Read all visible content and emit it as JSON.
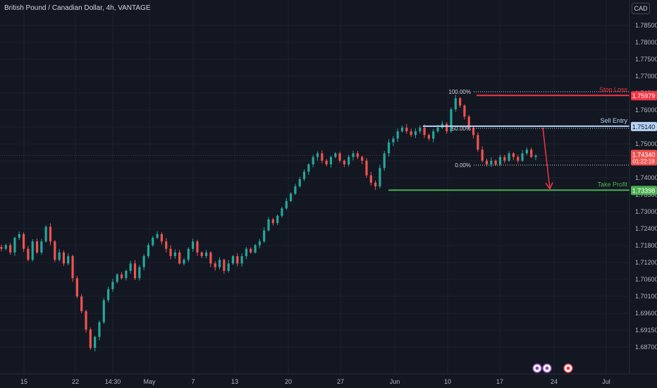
{
  "title": "British Pound / Canadian Dollar, 4h, VANTAGE",
  "currency": "CAD",
  "chart_data": {
    "type": "candlestick",
    "y_ticks": [
      "1.78500",
      "1.78000",
      "1.77500",
      "1.77000",
      "1.76500",
      "1.76000",
      "1.75500",
      "1.75000",
      "1.74500",
      "1.74000",
      "1.73500",
      "1.73000",
      "1.72400",
      "1.71800",
      "1.71200",
      "1.70600",
      "1.70100",
      "1.69600",
      "1.69150",
      "1.68700"
    ],
    "ylim": [
      1.687,
      1.785
    ],
    "x_ticks": [
      "15",
      "22",
      "14:30",
      "May",
      "7",
      "13",
      "20",
      "27",
      "Jun",
      "10",
      "17",
      "24",
      "Jul"
    ],
    "close_path": [
      1.718,
      1.719,
      1.717,
      1.721,
      1.722,
      1.718,
      1.715,
      1.72,
      1.717,
      1.72,
      1.724,
      1.72,
      1.715,
      1.717,
      1.714,
      1.716,
      1.71,
      1.705,
      1.701,
      1.696,
      1.691,
      1.694,
      1.698,
      1.704,
      1.707,
      1.709,
      1.711,
      1.71,
      1.712,
      1.714,
      1.71,
      1.713,
      1.716,
      1.719,
      1.721,
      1.722,
      1.72,
      1.718,
      1.716,
      1.717,
      1.714,
      1.715,
      1.718,
      1.72,
      1.717,
      1.716,
      1.717,
      1.714,
      1.713,
      1.715,
      1.712,
      1.714,
      1.716,
      1.714,
      1.716,
      1.718,
      1.717,
      1.719,
      1.72,
      1.723,
      1.726,
      1.725,
      1.727,
      1.729,
      1.731,
      1.733,
      1.735,
      1.737,
      1.739,
      1.741,
      1.743,
      1.744,
      1.742,
      1.741,
      1.743,
      1.744,
      1.742,
      1.741,
      1.743,
      1.744,
      1.743,
      1.742,
      1.738,
      1.736,
      1.735,
      1.74,
      1.744,
      1.747,
      1.748,
      1.75,
      1.751,
      1.75,
      1.749,
      1.75,
      1.751,
      1.749,
      1.748,
      1.75,
      1.751,
      1.752,
      1.75,
      1.756,
      1.759,
      1.757,
      1.754,
      1.751,
      1.749,
      1.745,
      1.742,
      1.741,
      1.742,
      1.741,
      1.743,
      1.742,
      1.744,
      1.743,
      1.742,
      1.744,
      1.745,
      1.743,
      1.7434
    ],
    "current_price": {
      "label": "1.74340",
      "countdown": "01:22:19",
      "value": 1.7434
    },
    "fib": {
      "levels": [
        {
          "label": "100.00%",
          "value": 1.7608
        },
        {
          "label": "50.00%",
          "value": 1.7508
        },
        {
          "label": "0.00%",
          "value": 1.7408
        }
      ]
    },
    "annotations": {
      "stop_loss": {
        "text": "Stop Loss",
        "price": "1.75979",
        "value": 1.75979,
        "color": "#f23645"
      },
      "sell_entry": {
        "text": "Sell Entry",
        "price": "1.75140",
        "value": 1.7514,
        "color": "#b5d3f5"
      },
      "take_profit": {
        "text": "Take Profit",
        "price": "1.73398",
        "value": 1.73398,
        "color": "#4caf50"
      }
    },
    "up_color": "#26a69a",
    "down_color": "#ef5350",
    "grid": true
  }
}
